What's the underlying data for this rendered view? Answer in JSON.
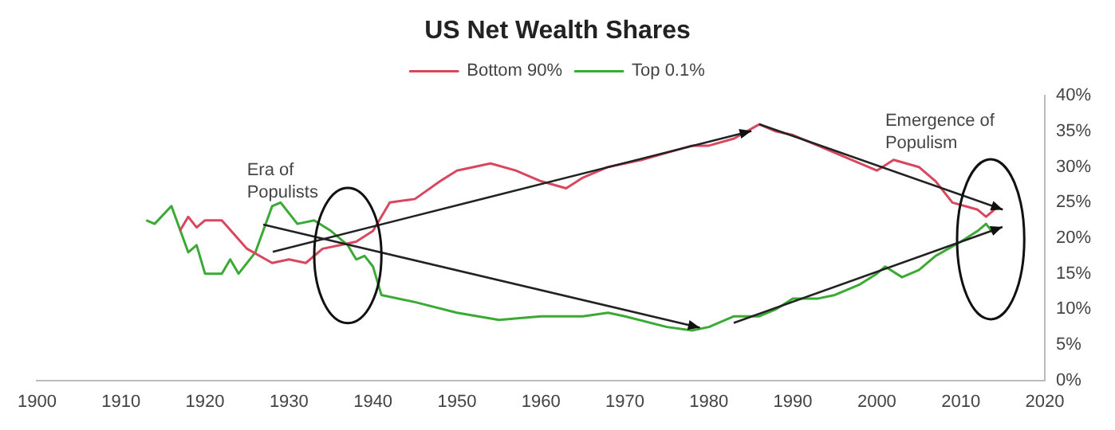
{
  "chart_data": {
    "type": "line",
    "title": "US Net Wealth Shares",
    "series": [
      {
        "name": "Bottom 90%",
        "color": "#d9475e",
        "x": [
          1917,
          1918,
          1919,
          1920,
          1922,
          1925,
          1928,
          1930,
          1932,
          1934,
          1936,
          1938,
          1940,
          1942,
          1945,
          1948,
          1950,
          1952,
          1954,
          1957,
          1960,
          1963,
          1965,
          1968,
          1972,
          1975,
          1978,
          1980,
          1983,
          1986,
          1988,
          1990,
          1993,
          1995,
          2000,
          2002,
          2005,
          2007,
          2009,
          2012,
          2013,
          2014
        ],
        "values": [
          21,
          23,
          21.5,
          22.5,
          22.5,
          18.5,
          16.5,
          17,
          16.5,
          18.5,
          19,
          19.5,
          21,
          25,
          25.5,
          28,
          29.5,
          30,
          30.5,
          29.5,
          28,
          27,
          28.5,
          30,
          31,
          32,
          33,
          33,
          34,
          36,
          35,
          34.5,
          33,
          32,
          29.5,
          31,
          30,
          28,
          25,
          24,
          23,
          24
        ]
      },
      {
        "name": "Top 0.1%",
        "color": "#3aaa35",
        "x": [
          1913,
          1914,
          1916,
          1918,
          1919,
          1920,
          1922,
          1923,
          1924,
          1926,
          1928,
          1929,
          1931,
          1933,
          1935,
          1937,
          1938,
          1939,
          1940,
          1941,
          1945,
          1950,
          1955,
          1960,
          1965,
          1968,
          1970,
          1975,
          1978,
          1980,
          1983,
          1986,
          1988,
          1990,
          1993,
          1995,
          1998,
          2000,
          2001,
          2003,
          2005,
          2007,
          2010,
          2012,
          2013,
          2014
        ],
        "values": [
          22.5,
          22,
          24.5,
          18,
          19,
          15,
          15,
          17,
          15,
          18,
          24.5,
          25,
          22,
          22.5,
          21,
          19,
          17,
          17.5,
          16,
          12,
          11,
          9.5,
          8.5,
          9,
          9,
          9.5,
          9,
          7.5,
          7,
          7.5,
          9,
          9,
          10,
          11.5,
          11.5,
          12,
          13.5,
          15,
          16,
          14.5,
          15.5,
          17.5,
          19.5,
          21,
          22,
          20.5
        ]
      }
    ],
    "xlim": [
      1900,
      2020
    ],
    "xticks": [
      1900,
      1910,
      1920,
      1930,
      1940,
      1950,
      1960,
      1970,
      1980,
      1990,
      2000,
      2010,
      2020
    ],
    "ylim": [
      0,
      40
    ],
    "yticks": [
      {
        "value": 0,
        "label": "0%"
      },
      {
        "value": 5,
        "label": "5%"
      },
      {
        "value": 10,
        "label": "10%"
      },
      {
        "value": 15,
        "label": "15%"
      },
      {
        "value": 20,
        "label": "20%"
      },
      {
        "value": 25,
        "label": "25%"
      },
      {
        "value": 30,
        "label": "30%"
      },
      {
        "value": 35,
        "label": "35%"
      },
      {
        "value": 40,
        "label": "40%"
      }
    ],
    "annotations": [
      "Era of Populists",
      "Emergence of Populism"
    ],
    "legend": "top",
    "grid": false
  }
}
